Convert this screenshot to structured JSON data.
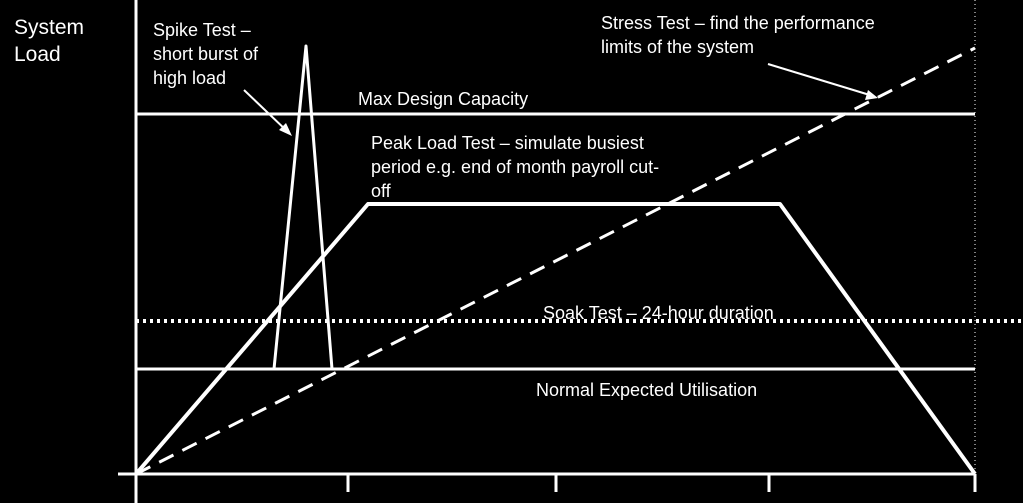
{
  "axis": {
    "y_label_line1": "System",
    "y_label_line2": "Load"
  },
  "annotations": {
    "spike_line1": "Spike Test –",
    "spike_line2": "short burst of",
    "spike_line3": "high load",
    "stress_line1": "Stress Test – find the performance",
    "stress_line2": "limits of the system",
    "max_capacity": "Max Design Capacity",
    "peak_line1": "Peak Load Test – simulate busiest",
    "peak_line2": "period e.g. end of month payroll cut-",
    "peak_line3": "off",
    "soak": "Soak Test – 24-hour duration",
    "normal": "Normal Expected Utilisation"
  },
  "colors": {
    "background": "#000000",
    "lines": "#ffffff"
  }
}
